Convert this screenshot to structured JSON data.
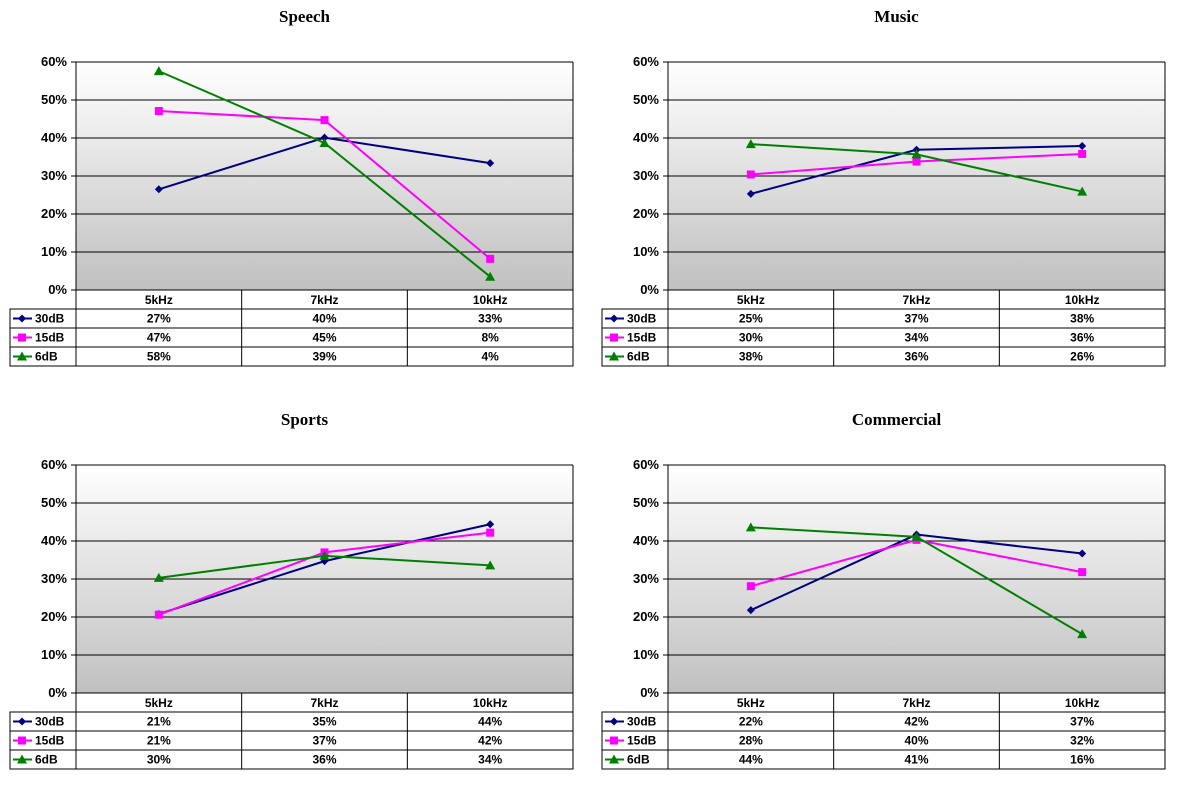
{
  "colors": {
    "s30dB": "#000080",
    "s15dB": "#ff00ff",
    "s6dB": "#008000"
  },
  "chart_data": [
    {
      "type": "line",
      "title": "Speech",
      "categories": [
        "5kHz",
        "7kHz",
        "10kHz"
      ],
      "yticks": [
        "0%",
        "10%",
        "20%",
        "30%",
        "40%",
        "50%",
        "60%"
      ],
      "ylim": [
        0,
        60
      ],
      "grid": true,
      "legend": "left-table",
      "series": [
        {
          "name": "30dB",
          "marker": "diamond",
          "values": [
            26.5,
            40.1,
            33.4
          ],
          "labels": [
            "27%",
            "40%",
            "33%"
          ]
        },
        {
          "name": "15dB",
          "marker": "square",
          "values": [
            47.1,
            44.7,
            8.2
          ],
          "labels": [
            "47%",
            "45%",
            "8%"
          ]
        },
        {
          "name": "6dB",
          "marker": "triangle",
          "values": [
            57.6,
            38.7,
            3.5
          ],
          "labels": [
            "58%",
            "39%",
            "4%"
          ]
        }
      ]
    },
    {
      "type": "line",
      "title": "Music",
      "categories": [
        "5kHz",
        "7kHz",
        "10kHz"
      ],
      "yticks": [
        "0%",
        "10%",
        "20%",
        "30%",
        "40%",
        "50%",
        "60%"
      ],
      "ylim": [
        0,
        60
      ],
      "grid": true,
      "legend": "left-table",
      "series": [
        {
          "name": "30dB",
          "marker": "diamond",
          "values": [
            25.3,
            36.9,
            37.9
          ],
          "labels": [
            "25%",
            "37%",
            "38%"
          ]
        },
        {
          "name": "15dB",
          "marker": "square",
          "values": [
            30.4,
            33.8,
            35.8
          ],
          "labels": [
            "30%",
            "34%",
            "36%"
          ]
        },
        {
          "name": "6dB",
          "marker": "triangle",
          "values": [
            38.4,
            35.7,
            25.9
          ],
          "labels": [
            "38%",
            "36%",
            "26%"
          ]
        }
      ]
    },
    {
      "type": "line",
      "title": "Sports",
      "categories": [
        "5kHz",
        "7kHz",
        "10kHz"
      ],
      "yticks": [
        "0%",
        "10%",
        "20%",
        "30%",
        "40%",
        "50%",
        "60%"
      ],
      "ylim": [
        0,
        60
      ],
      "grid": true,
      "legend": "left-table",
      "series": [
        {
          "name": "30dB",
          "marker": "diamond",
          "values": [
            20.8,
            34.7,
            44.4
          ],
          "labels": [
            "21%",
            "35%",
            "44%"
          ]
        },
        {
          "name": "15dB",
          "marker": "square",
          "values": [
            20.6,
            37.0,
            42.2
          ],
          "labels": [
            "21%",
            "37%",
            "42%"
          ]
        },
        {
          "name": "6dB",
          "marker": "triangle",
          "values": [
            30.3,
            36.1,
            33.6
          ],
          "labels": [
            "30%",
            "36%",
            "34%"
          ]
        }
      ]
    },
    {
      "type": "line",
      "title": "Commercial",
      "categories": [
        "5kHz",
        "7kHz",
        "10kHz"
      ],
      "yticks": [
        "0%",
        "10%",
        "20%",
        "30%",
        "40%",
        "50%",
        "60%"
      ],
      "ylim": [
        0,
        60
      ],
      "grid": true,
      "legend": "left-table",
      "series": [
        {
          "name": "30dB",
          "marker": "diamond",
          "values": [
            21.8,
            41.7,
            36.7
          ],
          "labels": [
            "22%",
            "42%",
            "37%"
          ]
        },
        {
          "name": "15dB",
          "marker": "square",
          "values": [
            28.1,
            40.3,
            31.8
          ],
          "labels": [
            "28%",
            "40%",
            "32%"
          ]
        },
        {
          "name": "6dB",
          "marker": "triangle",
          "values": [
            43.6,
            41.1,
            15.5
          ],
          "labels": [
            "44%",
            "41%",
            "16%"
          ]
        }
      ]
    }
  ]
}
